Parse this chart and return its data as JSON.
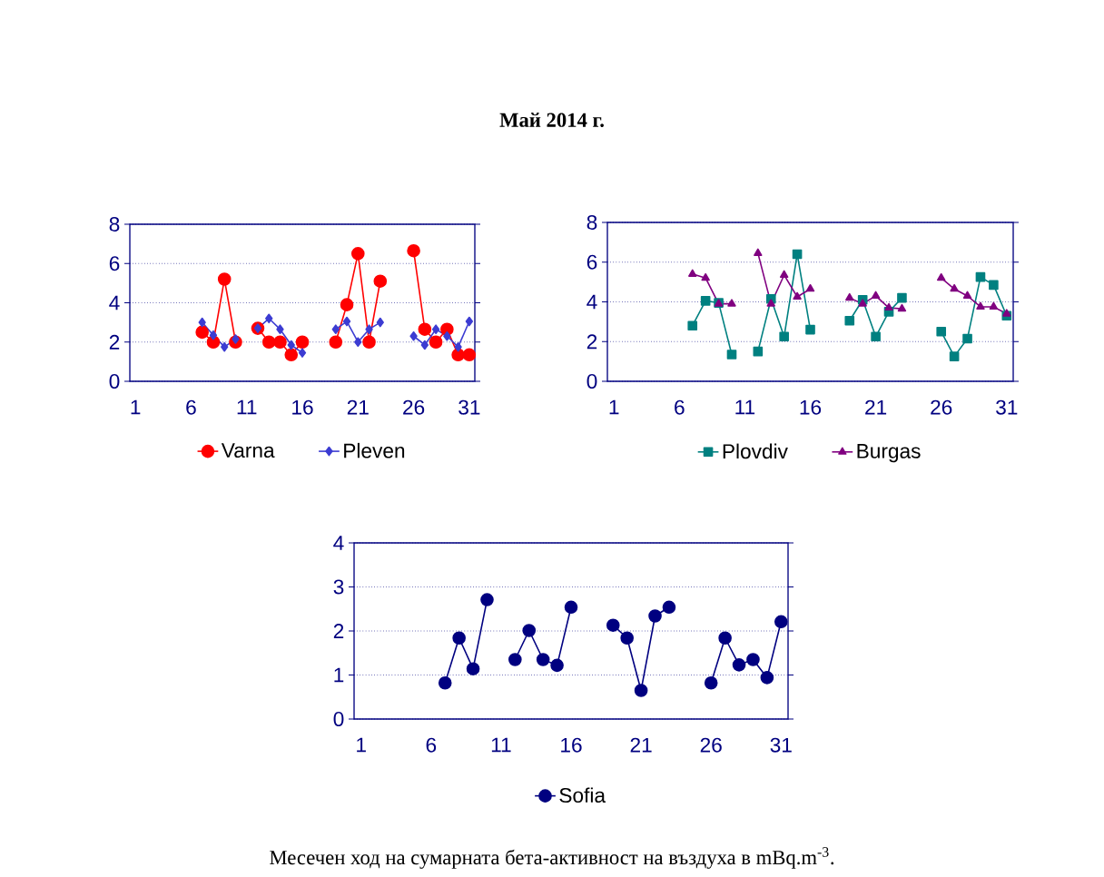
{
  "chart_data": [
    {
      "type": "line",
      "categories": [
        "1",
        null,
        null,
        null,
        null,
        "6",
        null,
        null,
        null,
        null,
        "11",
        null,
        null,
        null,
        null,
        "16",
        null,
        null,
        null,
        null,
        "21",
        null,
        null,
        null,
        null,
        "26",
        null,
        null,
        null,
        null,
        "31"
      ],
      "ylim": [
        0,
        8
      ],
      "yticks": [
        0,
        2,
        4,
        6,
        8
      ],
      "grid": "y",
      "legend": "bottom",
      "series": [
        {
          "name": "Varna",
          "color": "#ff0000",
          "marker": "circle",
          "values": [
            null,
            null,
            null,
            null,
            null,
            null,
            2.5,
            2.0,
            5.2,
            2.0,
            null,
            2.7,
            2.0,
            2.0,
            1.35,
            2.0,
            null,
            null,
            2.0,
            3.9,
            6.5,
            2.0,
            5.1,
            null,
            null,
            6.65,
            2.65,
            2.0,
            2.65,
            1.35,
            1.35
          ]
        },
        {
          "name": "Pleven",
          "color": "#3c3cd2",
          "marker": "diamond",
          "values": [
            null,
            null,
            null,
            null,
            null,
            null,
            3.0,
            2.35,
            1.75,
            2.15,
            null,
            2.7,
            3.2,
            2.65,
            1.85,
            1.45,
            null,
            null,
            2.65,
            3.05,
            2.0,
            2.65,
            3.0,
            null,
            null,
            2.3,
            1.85,
            2.65,
            2.3,
            1.75,
            3.05
          ]
        }
      ]
    },
    {
      "type": "line",
      "categories": [
        "1",
        null,
        null,
        null,
        null,
        "6",
        null,
        null,
        null,
        null,
        "11",
        null,
        null,
        null,
        null,
        "16",
        null,
        null,
        null,
        null,
        "21",
        null,
        null,
        null,
        null,
        "26",
        null,
        null,
        null,
        null,
        "31"
      ],
      "ylim": [
        0,
        8
      ],
      "yticks": [
        0,
        2,
        4,
        6,
        8
      ],
      "grid": "y",
      "legend": "bottom",
      "series": [
        {
          "name": "Plovdiv",
          "color": "#008080",
          "marker": "square",
          "values": [
            null,
            null,
            null,
            null,
            null,
            null,
            2.8,
            4.05,
            3.95,
            1.35,
            null,
            1.5,
            4.15,
            2.25,
            6.4,
            2.6,
            null,
            null,
            3.05,
            4.1,
            2.25,
            3.5,
            4.2,
            null,
            null,
            2.5,
            1.25,
            2.15,
            5.25,
            4.85,
            3.3
          ]
        },
        {
          "name": "Burgas",
          "color": "#800080",
          "marker": "triangle",
          "values": [
            null,
            null,
            null,
            null,
            null,
            null,
            5.4,
            5.2,
            3.9,
            3.9,
            null,
            6.45,
            3.9,
            5.35,
            4.25,
            4.65,
            null,
            null,
            4.2,
            3.9,
            4.3,
            3.7,
            3.65,
            null,
            null,
            5.2,
            4.65,
            4.3,
            3.75,
            3.75,
            3.4
          ]
        }
      ]
    },
    {
      "type": "line",
      "categories": [
        "1",
        null,
        null,
        null,
        null,
        "6",
        null,
        null,
        null,
        null,
        "11",
        null,
        null,
        null,
        null,
        "16",
        null,
        null,
        null,
        null,
        "21",
        null,
        null,
        null,
        null,
        "26",
        null,
        null,
        null,
        null,
        "31"
      ],
      "ylim": [
        0,
        4
      ],
      "yticks": [
        0,
        1,
        2,
        3,
        4
      ],
      "grid": "y",
      "legend": "bottom",
      "annotations": [
        "Май 2014 г.",
        "Месечен ход на сумарната бета-активност на въздуха в mBq.m$^{-3}$."
      ],
      "series": [
        {
          "name": "Sofia",
          "color": "#000080",
          "marker": "circle",
          "values": [
            null,
            null,
            null,
            null,
            null,
            null,
            0.82,
            1.84,
            1.14,
            2.71,
            null,
            1.35,
            2.01,
            1.35,
            1.22,
            2.54,
            null,
            null,
            2.13,
            1.84,
            0.65,
            2.34,
            2.54,
            null,
            null,
            0.82,
            1.84,
            1.23,
            1.35,
            0.94,
            2.21
          ]
        }
      ]
    }
  ]
}
